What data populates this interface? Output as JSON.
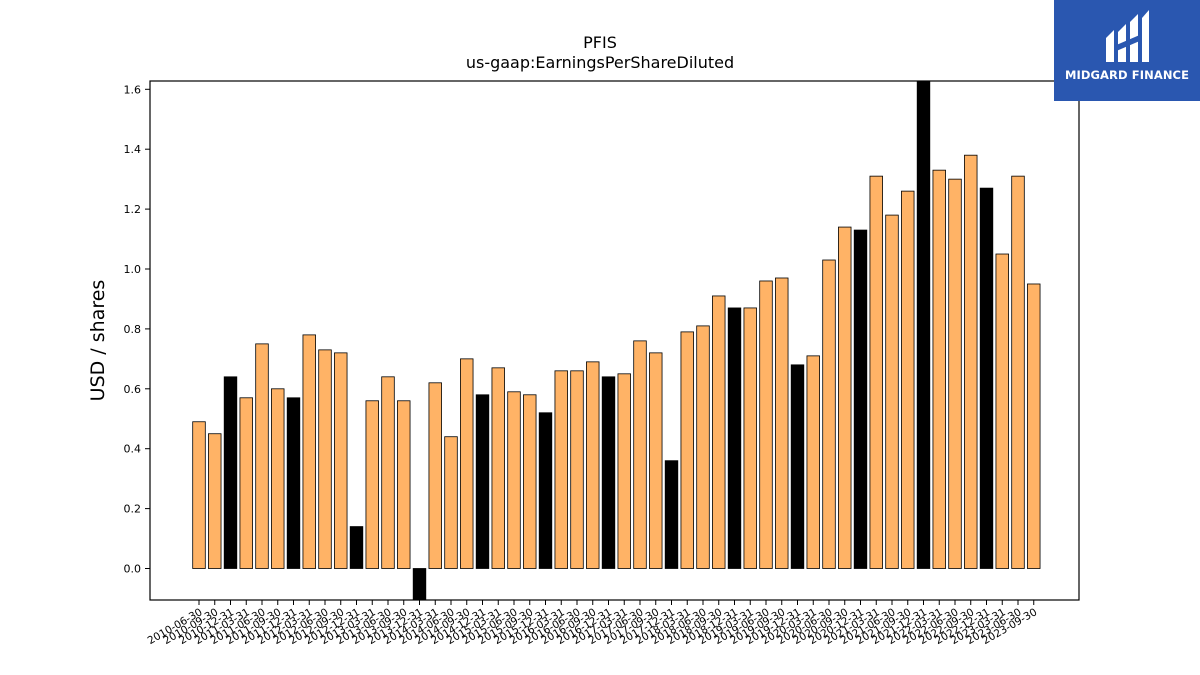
{
  "chart_data": {
    "type": "bar",
    "title": "PFIS",
    "subtitle": "us-gaap:EarningsPerShareDiluted",
    "ylabel": "USD / shares",
    "xlabel": "",
    "ylim": [
      -0.11,
      1.63
    ],
    "yticks": [
      "0.0",
      "0.2",
      "0.4",
      "0.6",
      "0.8",
      "1.0",
      "1.2",
      "1.4",
      "1.6"
    ],
    "colors": {
      "regular": "#ffb366",
      "year_end": "#000000",
      "edge": "#000000"
    },
    "categories": [
      "2010-06-30",
      "2010-09-30",
      "2010-12-31",
      "2011-03-31",
      "2011-06-30",
      "2011-09-30",
      "2011-12-31",
      "2012-03-31",
      "2012-06-30",
      "2012-09-30",
      "2012-12-31",
      "2013-03-31",
      "2013-06-30",
      "2013-09-30",
      "2013-12-31",
      "2014-03-31",
      "2014-06-30",
      "2014-09-30",
      "2014-12-31",
      "2015-03-31",
      "2015-06-30",
      "2015-09-30",
      "2015-12-31",
      "2016-03-31",
      "2016-06-30",
      "2016-09-30",
      "2016-12-31",
      "2017-03-31",
      "2017-06-30",
      "2017-09-30",
      "2017-12-31",
      "2018-03-31",
      "2018-06-30",
      "2018-09-30",
      "2018-12-31",
      "2019-03-31",
      "2019-06-30",
      "2019-09-30",
      "2019-12-31",
      "2020-03-31",
      "2020-06-30",
      "2020-09-30",
      "2020-12-31",
      "2021-03-31",
      "2021-06-30",
      "2021-09-30",
      "2021-12-31",
      "2022-03-31",
      "2022-06-30",
      "2022-09-30",
      "2022-12-31",
      "2023-03-31",
      "2023-06-30",
      "2023-09-30"
    ],
    "values": [
      0.49,
      0.45,
      0.64,
      0.57,
      0.75,
      0.6,
      0.57,
      0.78,
      0.73,
      0.72,
      0.14,
      0.56,
      0.64,
      0.56,
      -0.11,
      0.62,
      0.44,
      0.7,
      0.58,
      0.67,
      0.59,
      0.58,
      0.52,
      0.66,
      0.66,
      0.69,
      0.64,
      0.65,
      0.76,
      0.72,
      0.36,
      0.79,
      0.81,
      0.91,
      0.87,
      0.87,
      0.96,
      0.97,
      0.68,
      0.71,
      1.03,
      1.14,
      1.13,
      1.31,
      1.18,
      1.26,
      1.63,
      1.33,
      1.3,
      1.38,
      1.27,
      1.05,
      1.31,
      0.95
    ],
    "year_end": [
      false,
      false,
      true,
      false,
      false,
      false,
      true,
      false,
      false,
      false,
      true,
      false,
      false,
      false,
      true,
      false,
      false,
      false,
      true,
      false,
      false,
      false,
      true,
      false,
      false,
      false,
      true,
      false,
      false,
      false,
      true,
      false,
      false,
      false,
      true,
      false,
      false,
      false,
      true,
      false,
      false,
      false,
      true,
      false,
      false,
      false,
      true,
      false,
      false,
      false,
      true,
      false,
      false,
      false
    ],
    "grid": false,
    "legend": "none"
  },
  "logo": {
    "text": "MIDGARD FINANCE"
  }
}
